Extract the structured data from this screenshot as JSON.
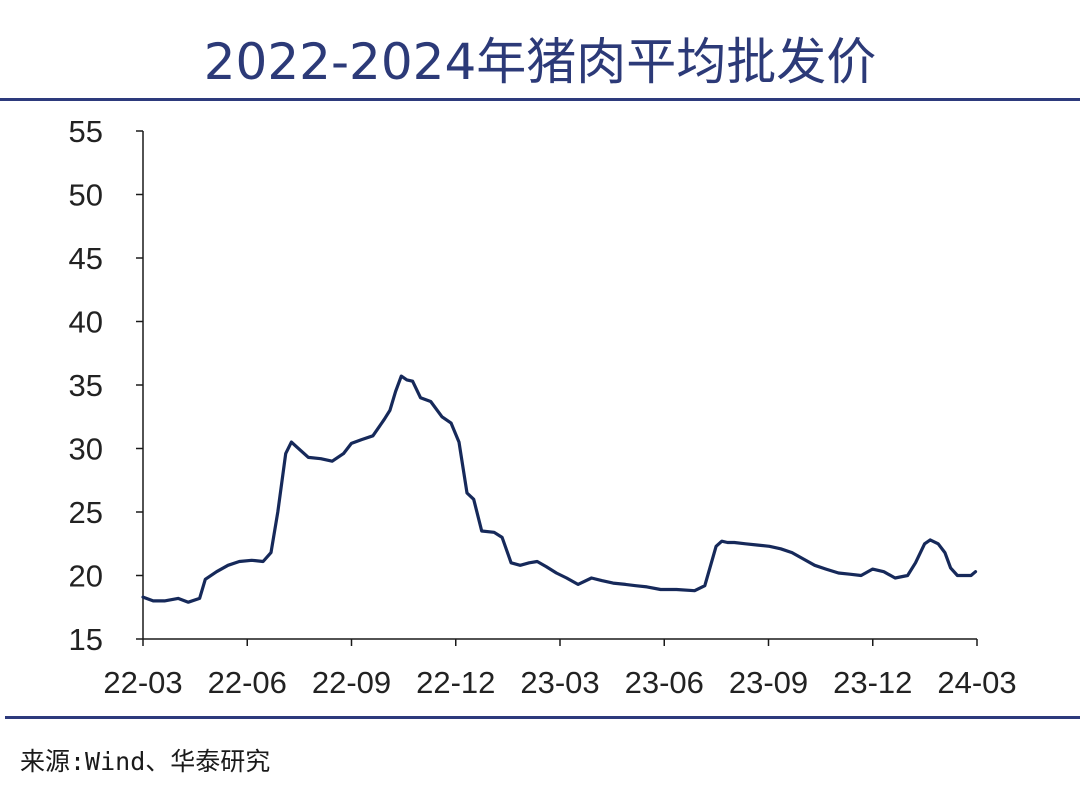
{
  "title": "2022-2024年猪肉平均批发价",
  "source": "来源:Wind、华泰研究",
  "colors": {
    "line": "#16295a",
    "axis": "#1a1a1a",
    "rule": "#2d3a7c",
    "title": "#2c3a78"
  },
  "chart_data": {
    "type": "line",
    "title": "2022-2024年猪肉平均批发价",
    "xlabel": "",
    "ylabel": "",
    "ylim": [
      15,
      55
    ],
    "yticks": [
      15,
      20,
      25,
      30,
      35,
      40,
      45,
      50,
      55
    ],
    "x_tick_labels": [
      "22-03",
      "22-06",
      "22-09",
      "22-12",
      "23-03",
      "23-06",
      "23-09",
      "23-12",
      "24-03"
    ],
    "grid": false,
    "legend": "none",
    "series": [
      {
        "x": [
          "2022-03-01",
          "2022-03-10",
          "2022-03-20",
          "2022-04-01",
          "2022-04-10",
          "2022-04-20",
          "2022-04-25",
          "2022-05-05",
          "2022-05-15",
          "2022-05-25",
          "2022-06-05",
          "2022-06-15",
          "2022-06-22",
          "2022-06-28",
          "2022-07-05",
          "2022-07-10",
          "2022-07-15",
          "2022-07-25",
          "2022-08-05",
          "2022-08-15",
          "2022-08-25",
          "2022-09-01",
          "2022-09-10",
          "2022-09-20",
          "2022-09-30",
          "2022-10-05",
          "2022-10-10",
          "2022-10-15",
          "2022-10-20",
          "2022-10-25",
          "2022-11-01",
          "2022-11-10",
          "2022-11-20",
          "2022-11-28",
          "2022-12-05",
          "2022-12-12",
          "2022-12-18",
          "2022-12-25",
          "2023-01-05",
          "2023-01-12",
          "2023-01-20",
          "2023-01-28",
          "2023-02-05",
          "2023-02-12",
          "2023-02-20",
          "2023-03-01",
          "2023-03-10",
          "2023-03-20",
          "2023-04-01",
          "2023-04-10",
          "2023-04-20",
          "2023-05-01",
          "2023-05-10",
          "2023-05-20",
          "2023-06-01",
          "2023-06-15",
          "2023-07-01",
          "2023-07-10",
          "2023-07-20",
          "2023-07-25",
          "2023-07-30",
          "2023-08-05",
          "2023-08-15",
          "2023-08-25",
          "2023-09-05",
          "2023-09-15",
          "2023-09-25",
          "2023-10-05",
          "2023-10-15",
          "2023-10-25",
          "2023-11-05",
          "2023-11-15",
          "2023-11-25",
          "2023-12-05",
          "2023-12-15",
          "2023-12-25",
          "2024-01-05",
          "2024-01-12",
          "2024-01-20",
          "2024-01-25",
          "2024-02-01",
          "2024-02-07",
          "2024-02-12",
          "2024-02-18",
          "2024-02-25",
          "2024-03-01",
          "2024-03-05"
        ],
        "values": [
          18.3,
          18.0,
          18.0,
          18.2,
          17.9,
          18.2,
          19.7,
          20.3,
          20.8,
          21.1,
          21.2,
          21.1,
          21.8,
          25.0,
          29.6,
          30.5,
          30.1,
          29.3,
          29.2,
          29.0,
          29.6,
          30.4,
          30.7,
          31.0,
          32.3,
          33.0,
          34.5,
          35.7,
          35.4,
          35.3,
          34.0,
          33.7,
          32.5,
          32.0,
          30.5,
          26.5,
          26.0,
          23.5,
          23.4,
          23.0,
          21.0,
          20.8,
          21.0,
          21.1,
          20.7,
          20.2,
          19.8,
          19.3,
          19.8,
          19.6,
          19.4,
          19.3,
          19.2,
          19.1,
          18.9,
          18.9,
          18.8,
          19.2,
          22.3,
          22.7,
          22.6,
          22.6,
          22.5,
          22.4,
          22.3,
          22.1,
          21.8,
          21.3,
          20.8,
          20.5,
          20.2,
          20.1,
          20.0,
          20.5,
          20.3,
          19.8,
          20.0,
          21.0,
          22.5,
          22.8,
          22.5,
          21.8,
          20.6,
          20.0,
          20.0,
          20.0,
          20.3
        ]
      }
    ]
  }
}
